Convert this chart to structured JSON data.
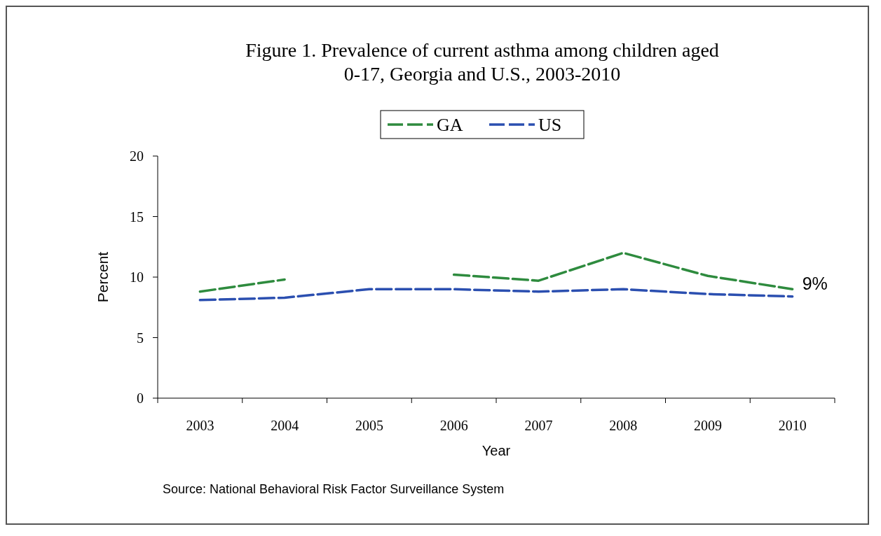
{
  "chart_data": {
    "type": "line",
    "title": "Figure 1. Prevalence of current asthma among children aged\n0-17, Georgia and U.S., 2003-2010",
    "xlabel": "Year",
    "ylabel": "Percent",
    "categories": [
      "2003",
      "2004",
      "2005",
      "2006",
      "2007",
      "2008",
      "2009",
      "2010"
    ],
    "series": [
      {
        "name": "GA",
        "color": "#2e8b3e",
        "values": [
          8.8,
          9.8,
          null,
          10.2,
          9.7,
          12.0,
          10.1,
          9.0
        ]
      },
      {
        "name": "US",
        "color": "#2b4fb0",
        "values": [
          8.1,
          8.3,
          9.0,
          9.0,
          8.8,
          9.0,
          8.6,
          8.4
        ]
      }
    ],
    "ylim": [
      0,
      20
    ],
    "yticks": [
      0,
      5,
      10,
      15,
      20
    ],
    "grid": false,
    "legend": "top",
    "line_style": "dashed",
    "marker": "none",
    "annotations": [
      {
        "text": "9%",
        "x": "2010",
        "y": 9.0
      },
      "Source: National Behavioral Risk Factor Surveillance System"
    ]
  }
}
